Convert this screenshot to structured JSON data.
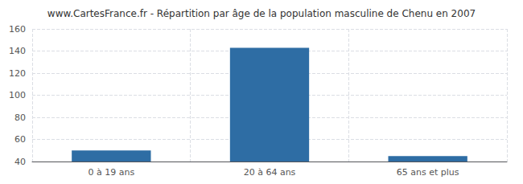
{
  "chart_data": {
    "type": "bar",
    "title": "www.CartesFrance.fr - Répartition par âge de la population masculine de Chenu en 2007",
    "categories": [
      "0 à 19 ans",
      "20 à 64 ans",
      "65 ans et plus"
    ],
    "values": [
      50,
      143,
      45
    ],
    "color": "#2e6da4",
    "ylim": [
      40,
      160
    ],
    "yticks": [
      40,
      60,
      80,
      100,
      120,
      140,
      160
    ],
    "grid": true
  }
}
